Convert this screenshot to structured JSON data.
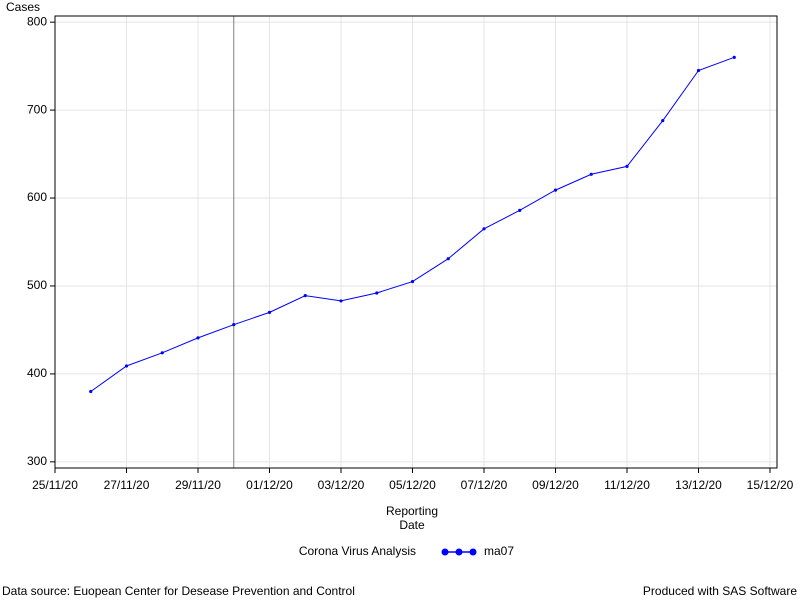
{
  "chart_data": {
    "type": "line",
    "y_label": "Cases",
    "x_label": [
      "Reporting",
      "Date"
    ],
    "legend_title": "Corona Virus Analysis",
    "footnote_left": "Data source: Euopean Center for Desease Prevention and Control",
    "footnote_right": "Produced with SAS Software",
    "x": [
      "2020-11-26",
      "2020-11-27",
      "2020-11-28",
      "2020-11-29",
      "2020-11-30",
      "2020-12-01",
      "2020-12-02",
      "2020-12-03",
      "2020-12-04",
      "2020-12-05",
      "2020-12-06",
      "2020-12-07",
      "2020-12-08",
      "2020-12-09",
      "2020-12-10",
      "2020-12-11",
      "2020-12-12",
      "2020-12-13",
      "2020-12-14"
    ],
    "series": [
      {
        "name": "ma07",
        "color": "#0000ff",
        "values": [
          380,
          409,
          424,
          441,
          456,
          470,
          489,
          483,
          492,
          505,
          531,
          565,
          586,
          609,
          627,
          636,
          688,
          745,
          760
        ]
      }
    ],
    "xlim": [
      "2020-11-25",
      "2020-12-15"
    ],
    "xticks": [
      {
        "value": "2020-11-25",
        "label": "25/11/20"
      },
      {
        "value": "2020-11-27",
        "label": "27/11/20"
      },
      {
        "value": "2020-11-29",
        "label": "29/11/20"
      },
      {
        "value": "2020-12-01",
        "label": "01/12/20"
      },
      {
        "value": "2020-12-03",
        "label": "03/12/20"
      },
      {
        "value": "2020-12-05",
        "label": "05/12/20"
      },
      {
        "value": "2020-12-07",
        "label": "07/12/20"
      },
      {
        "value": "2020-12-09",
        "label": "09/12/20"
      },
      {
        "value": "2020-12-11",
        "label": "11/12/20"
      },
      {
        "value": "2020-12-13",
        "label": "13/12/20"
      },
      {
        "value": "2020-12-15",
        "label": "15/12/20"
      }
    ],
    "ylim": [
      293,
      807
    ],
    "yticks": [
      300,
      400,
      500,
      600,
      700,
      800
    ],
    "reference_x": "2020-11-30",
    "grid": true
  }
}
